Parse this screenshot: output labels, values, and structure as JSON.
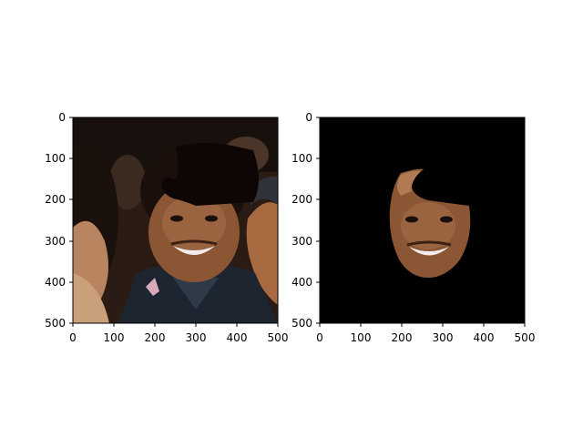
{
  "figure": {
    "panels": [
      {
        "name": "original-image-panel",
        "image_description": "photo of smiling man in a crowd with a dark occlusion blob over upper head",
        "x_ticks": [
          "0",
          "100",
          "200",
          "300",
          "400",
          "500"
        ],
        "y_ticks": [
          "0",
          "100",
          "200",
          "300",
          "400",
          "500"
        ]
      },
      {
        "name": "masked-face-panel",
        "image_description": "same face segmented on black background",
        "x_ticks": [
          "0",
          "100",
          "200",
          "300",
          "400",
          "500"
        ],
        "y_ticks": [
          "0",
          "100",
          "200",
          "300",
          "400",
          "500"
        ]
      }
    ],
    "axis_range": [
      0,
      500
    ],
    "colors": {
      "background": "#ffffff",
      "mask": "#000000",
      "occluder": "#0d0604",
      "skin": "#8a5634",
      "skin_highlight": "#b07a52",
      "hair": "#1a0f0b",
      "shirt": "#1d2530"
    }
  }
}
